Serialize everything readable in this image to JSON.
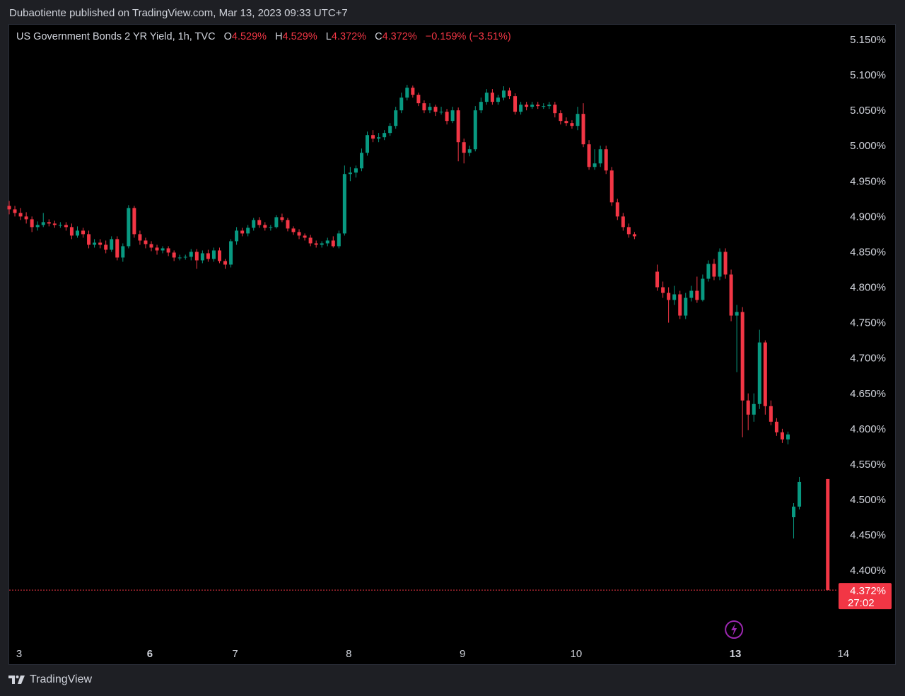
{
  "header": {
    "published_line": "Dubaotiente published on TradingView.com, Mar 13, 2023 09:33 UTC+7"
  },
  "legend": {
    "symbol": "US Government Bonds 2 YR Yield, 1h, TVC",
    "o_label": "O",
    "o_value": "4.529%",
    "h_label": "H",
    "h_value": "4.529%",
    "l_label": "L",
    "l_value": "4.372%",
    "c_label": "C",
    "c_value": "4.372%",
    "change": "−0.159% (−3.51%)"
  },
  "footer": {
    "brand": "TradingView"
  },
  "colors": {
    "up": "#089981",
    "down": "#f23645",
    "background": "#000000",
    "text": "#d1d4dc",
    "event_icon": "#9c27b0"
  },
  "icons": {
    "event": "lightning-bolt-icon",
    "brand": "tradingview-logo-icon"
  },
  "chart_data": {
    "type": "candlestick",
    "y_unit": "%",
    "ylim": [
      4.33,
      5.17
    ],
    "y_ticks": [
      "5.150%",
      "5.100%",
      "5.050%",
      "5.000%",
      "4.950%",
      "4.900%",
      "4.850%",
      "4.800%",
      "4.750%",
      "4.700%",
      "4.650%",
      "4.600%",
      "4.550%",
      "4.500%",
      "4.450%",
      "4.400%"
    ],
    "x_ticks": [
      {
        "label": "3",
        "index": 0,
        "bold": false
      },
      {
        "label": "6",
        "index": 23,
        "bold": true
      },
      {
        "label": "7",
        "index": 38,
        "bold": false
      },
      {
        "label": "8",
        "index": 58,
        "bold": false
      },
      {
        "label": "9",
        "index": 78,
        "bold": false
      },
      {
        "label": "10",
        "index": 98,
        "bold": false
      },
      {
        "label": "13",
        "index": 123,
        "bold": true
      },
      {
        "label": "14",
        "index": 138,
        "bold": false
      }
    ],
    "last_price": {
      "value": 4.372,
      "label": "4.372%",
      "countdown": "27:02"
    },
    "event_marker_index": 126,
    "candles": [
      [
        4.915,
        4.91,
        4.922,
        4.903
      ],
      [
        4.91,
        4.905,
        4.915,
        4.9
      ],
      [
        4.905,
        4.9,
        4.912,
        4.895
      ],
      [
        4.9,
        4.896,
        4.906,
        4.89
      ],
      [
        4.896,
        4.885,
        4.9,
        4.878
      ],
      [
        4.885,
        4.888,
        4.893,
        4.88
      ],
      [
        4.888,
        4.892,
        4.905,
        4.885
      ],
      [
        4.892,
        4.89,
        4.896,
        4.886
      ],
      [
        4.89,
        4.888,
        4.894,
        4.884
      ],
      [
        4.888,
        4.888,
        4.892,
        4.884
      ],
      [
        4.888,
        4.885,
        4.892,
        4.88
      ],
      [
        4.885,
        4.873,
        4.89,
        4.868
      ],
      [
        4.873,
        4.88,
        4.886,
        4.87
      ],
      [
        4.88,
        4.875,
        4.884,
        4.87
      ],
      [
        4.875,
        4.86,
        4.88,
        4.855
      ],
      [
        4.86,
        4.863,
        4.868,
        4.856
      ],
      [
        4.863,
        4.86,
        4.868,
        4.855
      ],
      [
        4.86,
        4.853,
        4.866,
        4.848
      ],
      [
        4.853,
        4.868,
        4.872,
        4.85
      ],
      [
        4.868,
        4.842,
        4.872,
        4.838
      ],
      [
        4.842,
        4.858,
        4.862,
        4.836
      ],
      [
        4.858,
        4.912,
        4.916,
        4.855
      ],
      [
        4.912,
        4.875,
        4.915,
        4.87
      ],
      [
        4.875,
        4.866,
        4.88,
        4.86
      ],
      [
        4.866,
        4.861,
        4.87,
        4.855
      ],
      [
        4.861,
        4.856,
        4.865,
        4.851
      ],
      [
        4.856,
        4.852,
        4.86,
        4.846
      ],
      [
        4.852,
        4.855,
        4.858,
        4.848
      ],
      [
        4.855,
        4.849,
        4.858,
        4.844
      ],
      [
        4.849,
        4.842,
        4.852,
        4.837
      ],
      [
        4.842,
        4.842,
        4.846,
        4.838
      ],
      [
        4.842,
        4.843,
        4.846,
        4.839
      ],
      [
        4.843,
        4.85,
        4.854,
        4.838
      ],
      [
        4.85,
        4.838,
        4.854,
        4.826
      ],
      [
        4.838,
        4.848,
        4.852,
        4.834
      ],
      [
        4.848,
        4.84,
        4.853,
        4.836
      ],
      [
        4.84,
        4.852,
        4.856,
        4.836
      ],
      [
        4.852,
        4.837,
        4.856,
        4.834
      ],
      [
        4.837,
        4.832,
        4.84,
        4.826
      ],
      [
        4.832,
        4.865,
        4.868,
        4.828
      ],
      [
        4.865,
        4.88,
        4.885,
        4.86
      ],
      [
        4.88,
        4.876,
        4.884,
        4.872
      ],
      [
        4.876,
        4.884,
        4.888,
        4.872
      ],
      [
        4.884,
        4.895,
        4.898,
        4.88
      ],
      [
        4.895,
        4.888,
        4.899,
        4.884
      ],
      [
        4.888,
        4.884,
        4.892,
        4.88
      ],
      [
        4.884,
        4.885,
        4.888,
        4.88
      ],
      [
        4.885,
        4.899,
        4.902,
        4.883
      ],
      [
        4.899,
        4.895,
        4.904,
        4.892
      ],
      [
        4.895,
        4.883,
        4.898,
        4.879
      ],
      [
        4.883,
        4.878,
        4.886,
        4.874
      ],
      [
        4.878,
        4.873,
        4.882,
        4.868
      ],
      [
        4.873,
        4.87,
        4.876,
        4.866
      ],
      [
        4.87,
        4.862,
        4.874,
        4.858
      ],
      [
        4.862,
        4.86,
        4.866,
        4.856
      ],
      [
        4.86,
        4.862,
        4.865,
        4.856
      ],
      [
        4.862,
        4.866,
        4.87,
        4.858
      ],
      [
        4.866,
        4.858,
        4.872,
        4.856
      ],
      [
        4.858,
        4.876,
        4.88,
        4.855
      ],
      [
        4.876,
        4.96,
        4.972,
        4.873
      ],
      [
        4.96,
        4.962,
        4.97,
        4.95
      ],
      [
        4.962,
        4.968,
        4.972,
        4.955
      ],
      [
        4.968,
        4.99,
        4.996,
        4.964
      ],
      [
        4.99,
        5.015,
        5.02,
        4.986
      ],
      [
        5.015,
        5.01,
        5.022,
        5.005
      ],
      [
        5.01,
        5.012,
        5.018,
        5.005
      ],
      [
        5.012,
        5.018,
        5.022,
        5.008
      ],
      [
        5.018,
        5.028,
        5.032,
        5.014
      ],
      [
        5.028,
        5.05,
        5.055,
        5.024
      ],
      [
        5.05,
        5.068,
        5.075,
        5.046
      ],
      [
        5.068,
        5.082,
        5.086,
        5.064
      ],
      [
        5.082,
        5.072,
        5.085,
        5.068
      ],
      [
        5.072,
        5.06,
        5.075,
        5.056
      ],
      [
        5.06,
        5.05,
        5.064,
        5.046
      ],
      [
        5.05,
        5.055,
        5.06,
        5.046
      ],
      [
        5.055,
        5.048,
        5.058,
        5.042
      ],
      [
        5.048,
        5.048,
        5.055,
        5.044
      ],
      [
        5.048,
        5.035,
        5.052,
        5.03
      ],
      [
        5.035,
        5.05,
        5.055,
        5.032
      ],
      [
        5.05,
        5.005,
        5.054,
        4.978
      ],
      [
        5.005,
        4.99,
        5.01,
        4.975
      ],
      [
        4.99,
        4.995,
        5.0,
        4.985
      ],
      [
        4.995,
        5.05,
        5.056,
        4.992
      ],
      [
        5.05,
        5.062,
        5.068,
        5.046
      ],
      [
        5.062,
        5.075,
        5.08,
        5.058
      ],
      [
        5.075,
        5.062,
        5.08,
        5.058
      ],
      [
        5.062,
        5.068,
        5.072,
        5.058
      ],
      [
        5.068,
        5.078,
        5.084,
        5.064
      ],
      [
        5.078,
        5.07,
        5.082,
        5.066
      ],
      [
        5.07,
        5.048,
        5.074,
        5.044
      ],
      [
        5.048,
        5.058,
        5.062,
        5.044
      ],
      [
        5.058,
        5.055,
        5.062,
        5.05
      ],
      [
        5.055,
        5.058,
        5.062,
        5.052
      ],
      [
        5.058,
        5.056,
        5.062,
        5.052
      ],
      [
        5.056,
        5.056,
        5.06,
        5.052
      ],
      [
        5.056,
        5.058,
        5.062,
        5.052
      ],
      [
        5.058,
        5.046,
        5.062,
        5.04
      ],
      [
        5.046,
        5.035,
        5.05,
        5.03
      ],
      [
        5.035,
        5.032,
        5.04,
        5.028
      ],
      [
        5.032,
        5.028,
        5.036,
        5.024
      ],
      [
        5.028,
        5.045,
        5.055,
        5.022
      ],
      [
        5.045,
        5.002,
        5.06,
        4.998
      ],
      [
        5.002,
        4.97,
        5.008,
        4.966
      ],
      [
        4.97,
        4.975,
        4.995,
        4.966
      ],
      [
        4.975,
        4.995,
        5.0,
        4.97
      ],
      [
        4.995,
        4.965,
        5.0,
        4.96
      ],
      [
        4.965,
        4.92,
        4.97,
        4.915
      ],
      [
        4.92,
        4.9,
        4.925,
        4.895
      ],
      [
        4.9,
        4.885,
        4.905,
        4.88
      ],
      [
        4.885,
        4.875,
        4.89,
        4.87
      ],
      [
        4.875,
        4.872,
        4.878,
        4.868
      ],
      [
        4.822,
        4.8,
        4.832,
        4.795
      ],
      [
        4.8,
        4.792,
        4.808,
        4.785
      ],
      [
        4.792,
        4.782,
        4.8,
        4.75
      ],
      [
        4.782,
        4.79,
        4.802,
        4.775
      ],
      [
        4.79,
        4.76,
        4.795,
        4.755
      ],
      [
        4.76,
        4.785,
        4.792,
        4.755
      ],
      [
        4.785,
        4.795,
        4.802,
        4.78
      ],
      [
        4.795,
        4.782,
        4.815,
        4.778
      ],
      [
        4.782,
        4.812,
        4.818,
        4.78
      ],
      [
        4.812,
        4.833,
        4.838,
        4.808
      ],
      [
        4.833,
        4.815,
        4.84,
        4.81
      ],
      [
        4.815,
        4.85,
        4.855,
        4.81
      ],
      [
        4.85,
        4.818,
        4.855,
        4.812
      ],
      [
        4.818,
        4.76,
        4.825,
        4.752
      ],
      [
        4.76,
        4.765,
        4.775,
        4.68
      ],
      [
        4.765,
        4.64,
        4.772,
        4.588
      ],
      [
        4.64,
        4.62,
        4.65,
        4.598
      ],
      [
        4.62,
        4.635,
        4.65,
        4.61
      ],
      [
        4.635,
        4.722,
        4.74,
        4.628
      ],
      [
        4.722,
        4.632,
        4.725,
        4.62
      ],
      [
        4.632,
        4.61,
        4.64,
        4.605
      ],
      [
        4.61,
        4.595,
        4.615,
        4.59
      ],
      [
        4.595,
        4.585,
        4.6,
        4.58
      ],
      [
        4.585,
        4.592,
        4.596,
        4.578
      ],
      [
        4.475,
        4.49,
        4.495,
        4.445
      ],
      [
        4.49,
        4.525,
        4.532,
        4.486
      ],
      [
        4.529,
        4.372,
        4.529,
        4.372
      ]
    ],
    "candle_offsets": {
      "111": 3,
      "137": 4
    }
  }
}
